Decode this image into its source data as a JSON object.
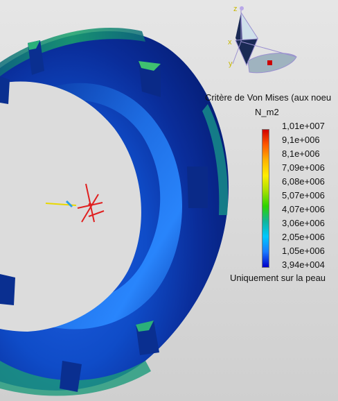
{
  "legend": {
    "title": "Critère de Von Mises (aux noeu",
    "unit": "N_m2",
    "ticks": [
      "1,01e+007",
      "9,1e+006",
      "8,1e+006",
      "7,09e+006",
      "6,08e+006",
      "5,07e+006",
      "4,07e+006",
      "3,06e+006",
      "2,05e+006",
      "1,05e+006",
      "3,94e+004"
    ],
    "colors": [
      "#d10000",
      "#ff5a00",
      "#ffb300",
      "#ffee00",
      "#a8e000",
      "#2ed400",
      "#10b59a",
      "#00c8ff",
      "#1a7aff",
      "#0000c8"
    ],
    "footer": "Uniquement sur la peau"
  },
  "triad": {
    "axis_labels": {
      "z": "z",
      "x": "x",
      "y": "y"
    }
  }
}
